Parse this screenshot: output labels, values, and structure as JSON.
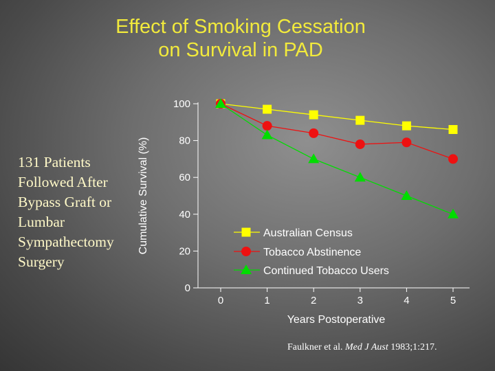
{
  "slide": {
    "title_line1": "Effect of Smoking Cessation",
    "title_line2": "on Survival in PAD",
    "side_note": [
      "131 Patients",
      "Followed After",
      "Bypass Graft or",
      "Lumbar",
      "Sympathectomy",
      "Surgery"
    ],
    "citation": {
      "authors": "Faulkner et al.",
      "journal": "Med J Aust",
      "details": "1983;1:217."
    }
  },
  "chart_data": {
    "type": "line",
    "title": "",
    "xlabel": "Years Postoperative",
    "ylabel": "Cumulative Survival (%)",
    "x": [
      0,
      1,
      2,
      3,
      4,
      5
    ],
    "xlim": [
      0,
      5
    ],
    "ylim": [
      0,
      100
    ],
    "yticks": [
      0,
      20,
      40,
      60,
      80,
      100
    ],
    "grid": false,
    "legend_position": "lower-right",
    "series": [
      {
        "name": "Australian Census",
        "marker": "square",
        "color": "#ffff00",
        "values": [
          100,
          97,
          94,
          91,
          88,
          86
        ]
      },
      {
        "name": "Tobacco Abstinence",
        "marker": "circle",
        "color": "#ee1111",
        "values": [
          100,
          88,
          84,
          78,
          79,
          70
        ]
      },
      {
        "name": "Continued Tobacco Users",
        "marker": "triangle",
        "color": "#00dd00",
        "values": [
          100,
          83,
          70,
          60,
          50,
          40
        ]
      }
    ]
  }
}
